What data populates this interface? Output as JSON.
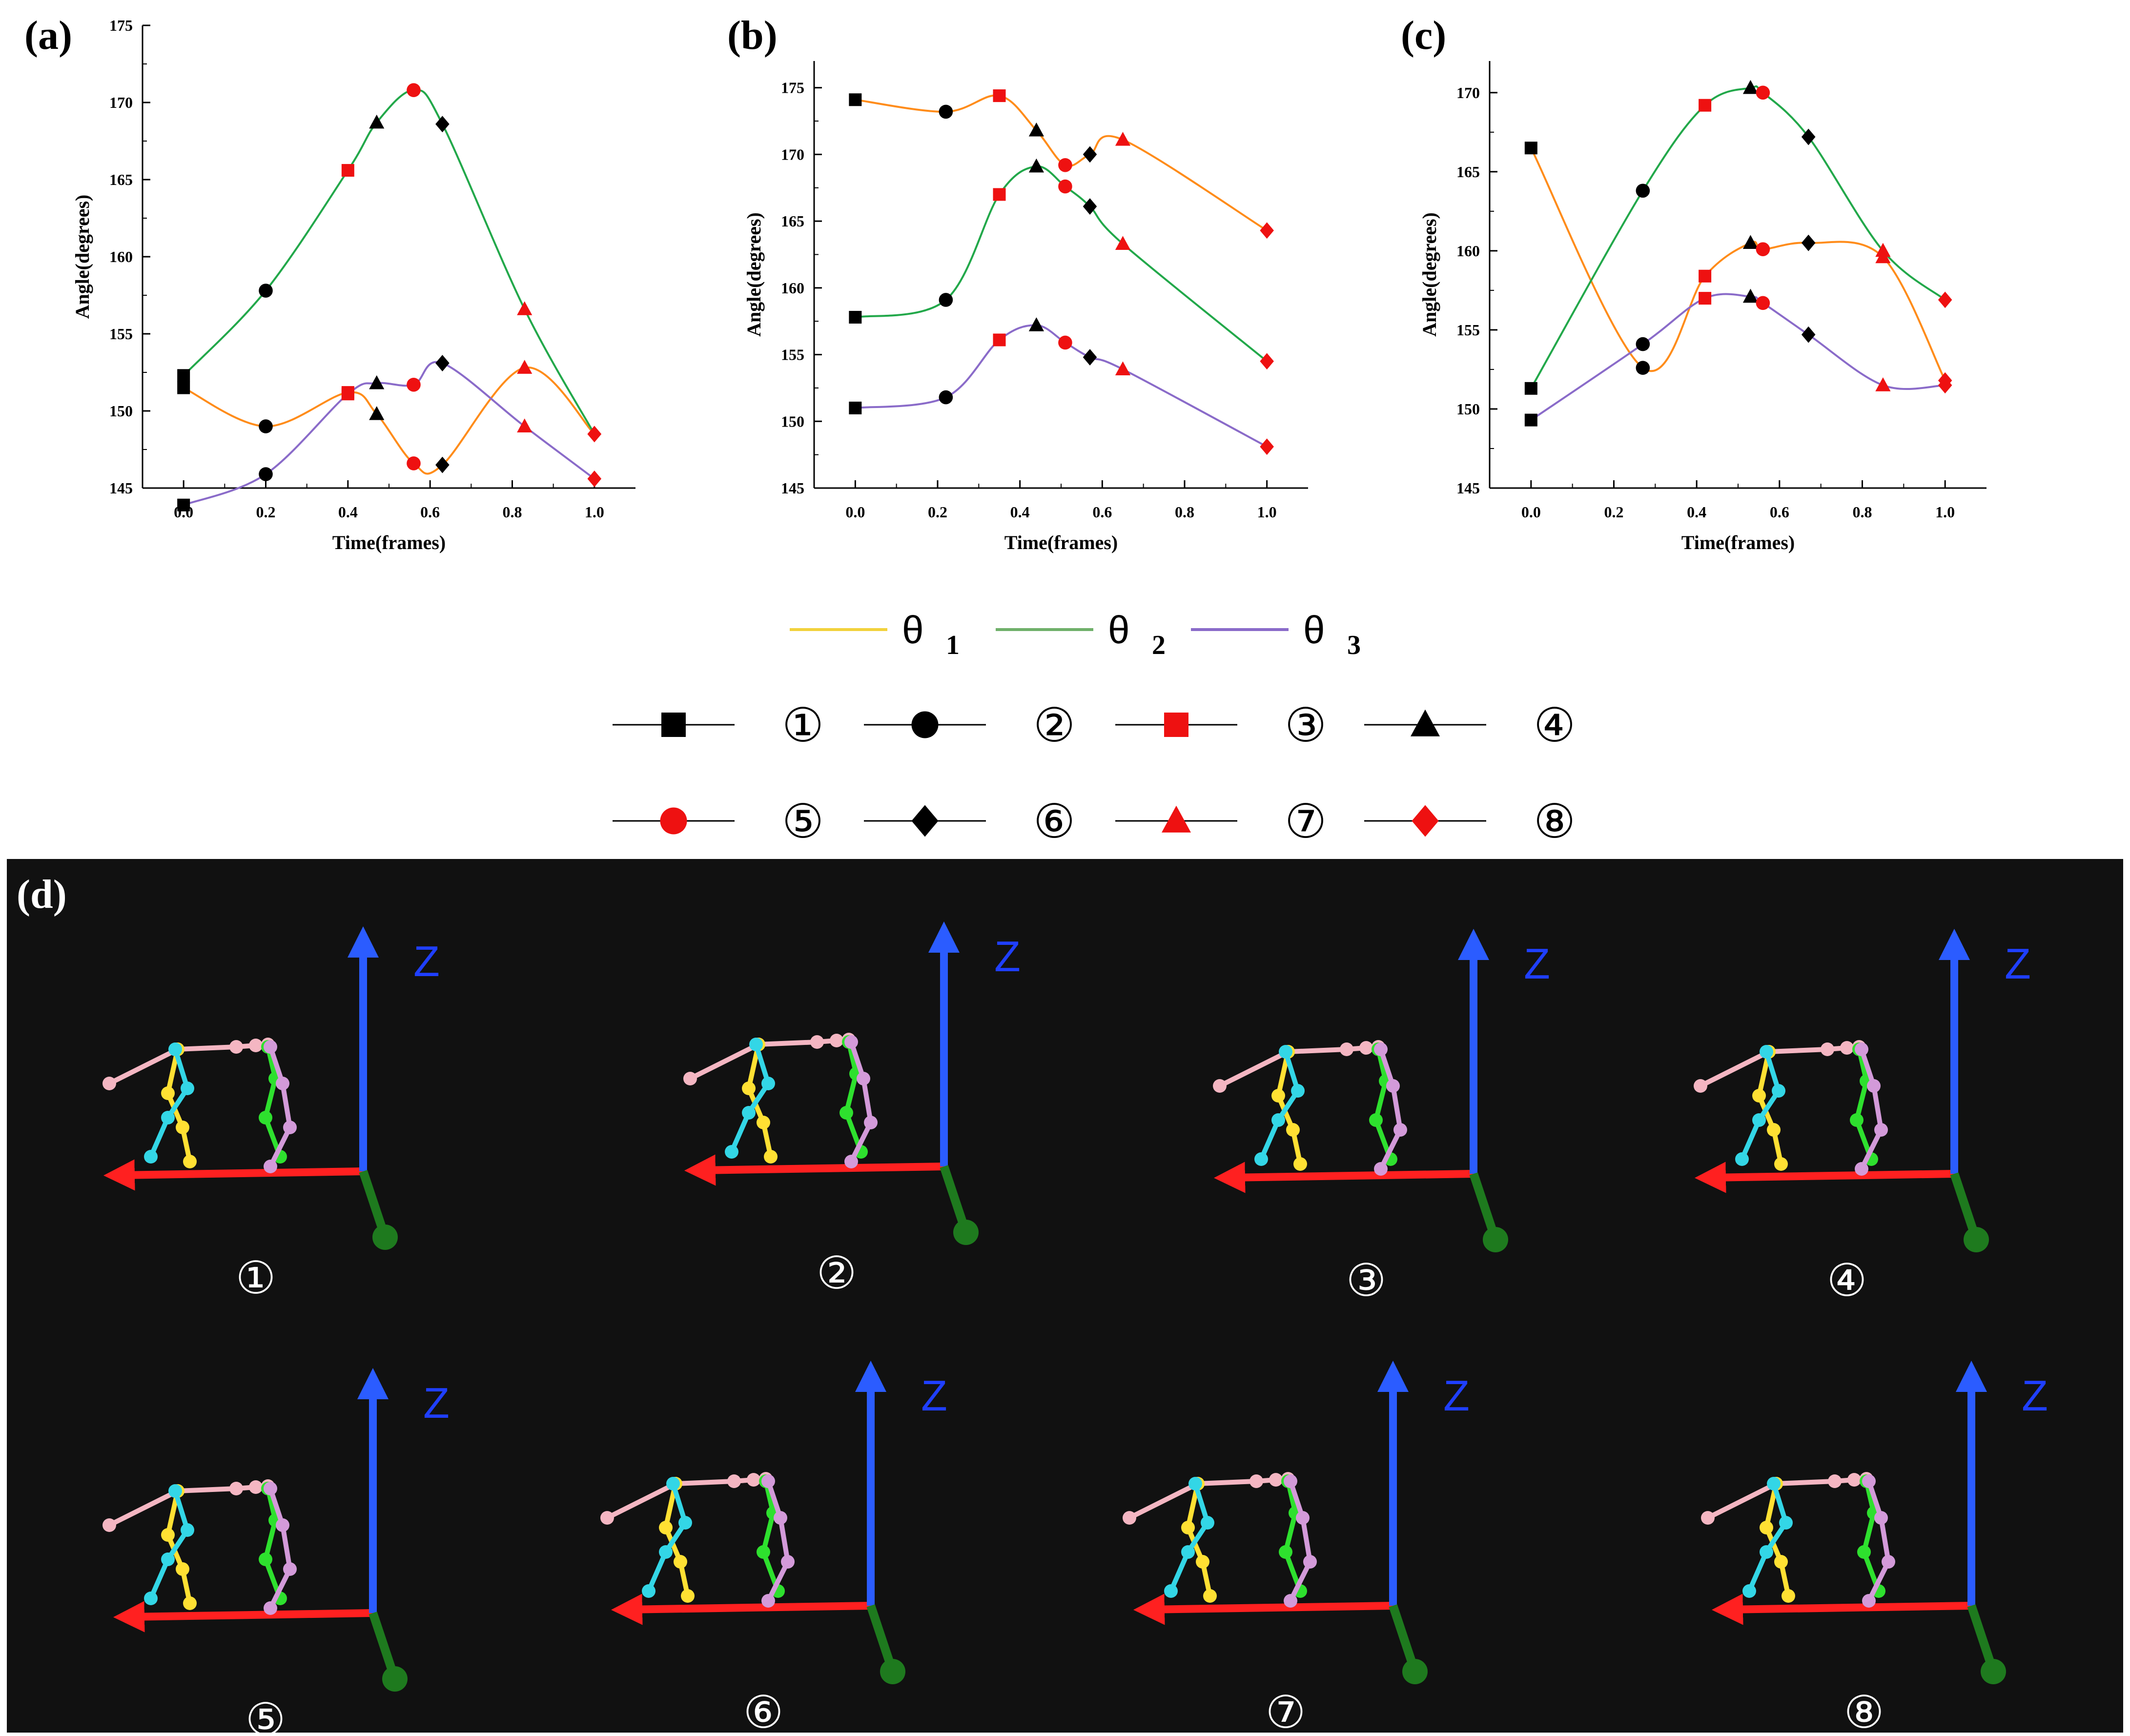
{
  "chart_data": [
    {
      "type": "line",
      "panel_label": "(a)",
      "xlabel": "Time(frames)",
      "ylabel": "Angle(degrees)",
      "xlim": [
        -0.1,
        1.1
      ],
      "ylim": [
        145,
        175
      ],
      "xticks": [
        0.0,
        0.2,
        0.4,
        0.6,
        0.8,
        1.0
      ],
      "xtick_labels": [
        "0.0",
        "0.2",
        "0.4",
        "0.6",
        "0.8",
        "1.0"
      ],
      "yticks": [
        145,
        150,
        155,
        160,
        165,
        170,
        175
      ],
      "ytick_labels": [
        "145",
        "150",
        "155",
        "160",
        "165",
        "170",
        "175"
      ],
      "series": [
        {
          "name": "θ1",
          "color": "#ff8c1a",
          "points": [
            [
              0.0,
              151.5
            ],
            [
              0.2,
              149.0
            ],
            [
              0.4,
              151.2
            ],
            [
              0.47,
              149.8
            ],
            [
              0.56,
              146.6
            ],
            [
              0.63,
              146.5
            ],
            [
              0.83,
              152.8
            ],
            [
              1.0,
              148.5
            ]
          ],
          "markers": [
            "1",
            "2",
            "3",
            "4",
            "5",
            "6",
            "7",
            "8"
          ]
        },
        {
          "name": "θ2",
          "color": "#22a84a",
          "points": [
            [
              0.0,
              152.3
            ],
            [
              0.2,
              157.8
            ],
            [
              0.4,
              165.6
            ],
            [
              0.47,
              168.7
            ],
            [
              0.56,
              170.8
            ],
            [
              0.63,
              168.6
            ],
            [
              0.83,
              156.6
            ],
            [
              1.0,
              148.5
            ]
          ],
          "markers": [
            "1",
            "2",
            "3",
            "4",
            "5",
            "6",
            "7",
            "8"
          ]
        },
        {
          "name": "θ3",
          "color": "#8a6bc9",
          "points": [
            [
              0.0,
              143.9
            ],
            [
              0.2,
              145.9
            ],
            [
              0.4,
              151.1
            ],
            [
              0.47,
              151.8
            ],
            [
              0.56,
              151.7
            ],
            [
              0.63,
              153.1
            ],
            [
              0.83,
              149.0
            ],
            [
              1.0,
              145.6
            ]
          ],
          "markers": [
            "1",
            "2",
            "3",
            "4",
            "5",
            "6",
            "7",
            "8"
          ]
        }
      ]
    },
    {
      "type": "line",
      "panel_label": "(b)",
      "xlabel": "Time(frames)",
      "ylabel": "Angle(degrees)",
      "xlim": [
        -0.1,
        1.1
      ],
      "ylim": [
        145,
        177
      ],
      "xticks": [
        0.0,
        0.2,
        0.4,
        0.6,
        0.8,
        1.0
      ],
      "xtick_labels": [
        "0.0",
        "0.2",
        "0.4",
        "0.6",
        "0.8",
        "1.0"
      ],
      "yticks": [
        145,
        150,
        155,
        160,
        165,
        170,
        175
      ],
      "ytick_labels": [
        "145",
        "150",
        "155",
        "160",
        "165",
        "170",
        "175"
      ],
      "series": [
        {
          "name": "θ1",
          "color": "#ff8c1a",
          "points": [
            [
              0.0,
              174.1
            ],
            [
              0.22,
              173.2
            ],
            [
              0.35,
              174.4
            ],
            [
              0.44,
              171.8
            ],
            [
              0.51,
              169.2
            ],
            [
              0.57,
              170.0
            ],
            [
              0.65,
              171.1
            ],
            [
              1.0,
              164.3
            ]
          ],
          "markers": [
            "1",
            "2",
            "3",
            "4",
            "5",
            "6",
            "7",
            "8"
          ]
        },
        {
          "name": "θ2",
          "color": "#22a84a",
          "points": [
            [
              0.0,
              157.8
            ],
            [
              0.22,
              159.1
            ],
            [
              0.35,
              167.0
            ],
            [
              0.44,
              169.1
            ],
            [
              0.51,
              167.6
            ],
            [
              0.57,
              166.1
            ],
            [
              0.65,
              163.3
            ],
            [
              1.0,
              154.5
            ]
          ],
          "markers": [
            "1",
            "2",
            "3",
            "4",
            "5",
            "6",
            "7",
            "8"
          ]
        },
        {
          "name": "θ3",
          "color": "#8a6bc9",
          "points": [
            [
              0.0,
              151.0
            ],
            [
              0.22,
              151.8
            ],
            [
              0.35,
              156.1
            ],
            [
              0.44,
              157.2
            ],
            [
              0.51,
              155.9
            ],
            [
              0.57,
              154.8
            ],
            [
              0.65,
              153.9
            ],
            [
              1.0,
              148.1
            ]
          ],
          "markers": [
            "1",
            "2",
            "3",
            "4",
            "5",
            "6",
            "7",
            "8"
          ]
        }
      ]
    },
    {
      "type": "line",
      "panel_label": "(c)",
      "xlabel": "Time(frames)",
      "ylabel": "Angle(degrees)",
      "xlim": [
        -0.1,
        1.1
      ],
      "ylim": [
        145,
        172
      ],
      "xticks": [
        0.0,
        0.2,
        0.4,
        0.6,
        0.8,
        1.0
      ],
      "xtick_labels": [
        "0.0",
        "0.2",
        "0.4",
        "0.6",
        "0.8",
        "1.0"
      ],
      "yticks": [
        145,
        150,
        155,
        160,
        165,
        170
      ],
      "ytick_labels": [
        "145",
        "150",
        "155",
        "160",
        "165",
        "170"
      ],
      "series": [
        {
          "name": "θ1",
          "color": "#ff8c1a",
          "points": [
            [
              0.0,
              166.5
            ],
            [
              0.27,
              152.6
            ],
            [
              0.42,
              158.4
            ],
            [
              0.53,
              160.5
            ],
            [
              0.56,
              160.1
            ],
            [
              0.67,
              160.5
            ],
            [
              0.85,
              159.6
            ],
            [
              1.0,
              151.8
            ]
          ],
          "markers": [
            "1",
            "2",
            "3",
            "4",
            "5",
            "6",
            "7",
            "8"
          ]
        },
        {
          "name": "θ2",
          "color": "#22a84a",
          "points": [
            [
              0.0,
              151.3
            ],
            [
              0.27,
              163.8
            ],
            [
              0.42,
              169.2
            ],
            [
              0.53,
              170.3
            ],
            [
              0.56,
              170.0
            ],
            [
              0.67,
              167.2
            ],
            [
              0.85,
              160.0
            ],
            [
              1.0,
              156.9
            ]
          ],
          "markers": [
            "1",
            "2",
            "3",
            "4",
            "5",
            "6",
            "7",
            "8"
          ]
        },
        {
          "name": "θ3",
          "color": "#8a6bc9",
          "points": [
            [
              0.0,
              149.3
            ],
            [
              0.27,
              154.1
            ],
            [
              0.42,
              157.0
            ],
            [
              0.53,
              157.1
            ],
            [
              0.56,
              156.7
            ],
            [
              0.67,
              154.7
            ],
            [
              0.85,
              151.5
            ],
            [
              1.0,
              151.5
            ]
          ],
          "markers": [
            "1",
            "2",
            "3",
            "4",
            "5",
            "6",
            "7",
            "8"
          ]
        }
      ]
    }
  ],
  "legend": {
    "lines": [
      {
        "symbol": "θ",
        "sub": "1",
        "color": "#f2d23c"
      },
      {
        "symbol": "θ",
        "sub": "2",
        "color": "#6fb06a"
      },
      {
        "symbol": "θ",
        "sub": "3",
        "color": "#8a6bc9"
      }
    ],
    "markers": [
      {
        "id": "1",
        "label": "①",
        "shape": "square",
        "color": "#000000"
      },
      {
        "id": "2",
        "label": "②",
        "shape": "circle",
        "color": "#000000"
      },
      {
        "id": "3",
        "label": "③",
        "shape": "square",
        "color": "#ee1111"
      },
      {
        "id": "4",
        "label": "④",
        "shape": "triangle",
        "color": "#000000"
      },
      {
        "id": "5",
        "label": "⑤",
        "shape": "circle",
        "color": "#ee1111"
      },
      {
        "id": "6",
        "label": "⑥",
        "shape": "diamond",
        "color": "#000000"
      },
      {
        "id": "7",
        "label": "⑦",
        "shape": "triangle",
        "color": "#ee1111"
      },
      {
        "id": "8",
        "label": "⑧",
        "shape": "diamond",
        "color": "#ee1111"
      }
    ]
  },
  "panel_d": {
    "label": "(d)",
    "axis_label": "Z",
    "frames": [
      "①",
      "②",
      "③",
      "④",
      "⑤",
      "⑥",
      "⑦",
      "⑧"
    ]
  }
}
